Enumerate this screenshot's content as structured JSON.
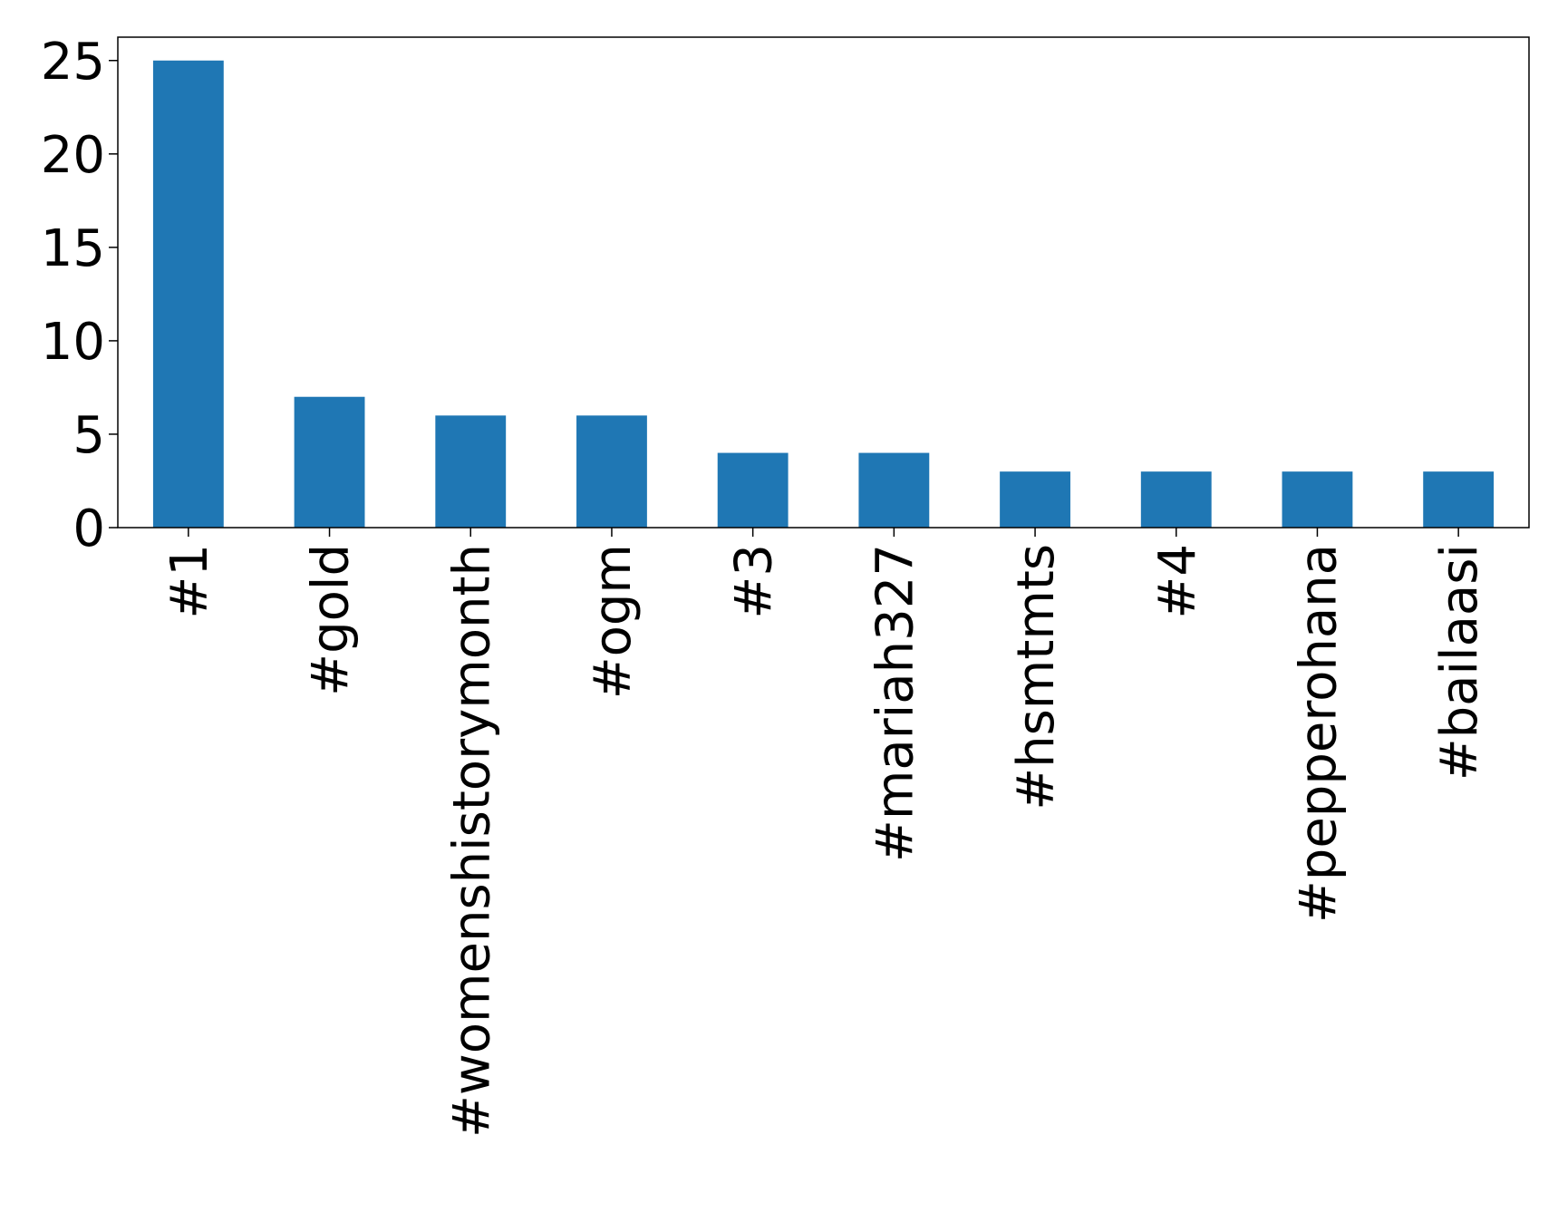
{
  "chart_data": {
    "type": "bar",
    "title": "",
    "xlabel": "",
    "ylabel": "",
    "categories": [
      "#1",
      "#gold",
      "#womenshistorymonth",
      "#ogm",
      "#3",
      "#mariah327",
      "#hsmtmts",
      "#4",
      "#pepperohana",
      "#bailaasi"
    ],
    "values": [
      25,
      7,
      6,
      6,
      4,
      4,
      3,
      3,
      3,
      3
    ],
    "ylim": [
      0,
      26.25
    ],
    "yticks": [
      0,
      5,
      10,
      15,
      20,
      25
    ],
    "grid": false,
    "legend": "none",
    "bar_color": "#1f77b4",
    "x_tick_rotation": "vertical"
  }
}
